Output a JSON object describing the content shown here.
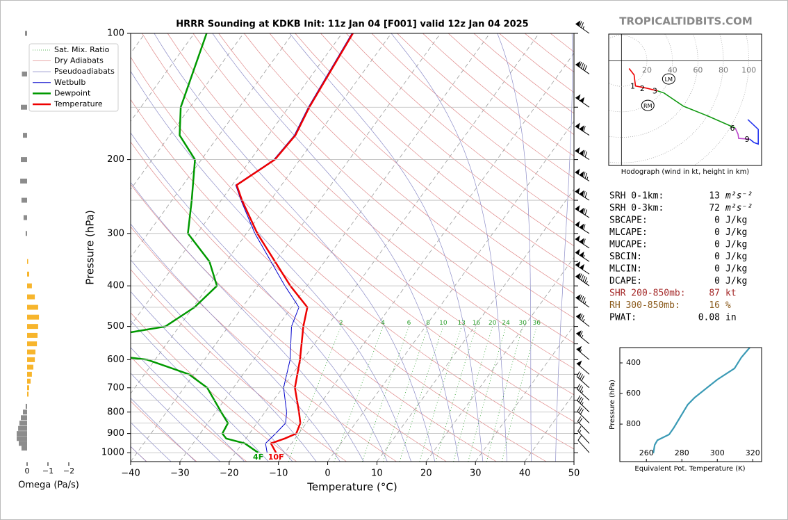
{
  "brand": "TROPICALTIDBITS.COM",
  "chart_data": [
    {
      "type": "skewt",
      "title": "HRRR Sounding at KDKB Init: 11z Jan 04 [F001] valid 12z Jan 04 2025",
      "x_label": "Temperature (°C)",
      "y_label": "Pressure (hPa)",
      "xlim": [
        -40,
        50
      ],
      "xticks": [
        {
          "value": -40,
          "label": "−40"
        },
        {
          "value": -30,
          "label": "−30"
        },
        {
          "value": -20,
          "label": "−20"
        },
        {
          "value": -10,
          "label": "−10"
        },
        0,
        10,
        20,
        30,
        40,
        50
      ],
      "ylim": [
        1050,
        100
      ],
      "log_y": true,
      "yticks": [
        100,
        200,
        300,
        400,
        500,
        600,
        700,
        800,
        900,
        1000
      ],
      "y_minor": [
        150,
        250,
        350,
        450,
        550,
        650,
        750,
        850,
        950
      ],
      "legend_position": "upper left",
      "reference_lines": [
        {
          "name": "Sat. Mix. Ratio",
          "color": "#2ca02c",
          "labels": [
            2,
            4,
            6,
            8,
            10,
            13,
            16,
            20,
            24,
            30,
            36
          ]
        },
        {
          "name": "Dry Adiabats",
          "color": "#e08a8a"
        },
        {
          "name": "Pseudoadiabats",
          "color": "#8c8cc8"
        }
      ],
      "series": [
        {
          "name": "Wetbulb",
          "color": "#0000cc",
          "pressure": [
            1000,
            950,
            900,
            850,
            800,
            700,
            600,
            500,
            450,
            400,
            300,
            250,
            230,
            200,
            175,
            150,
            100
          ],
          "values": [
            -13.6,
            -15.3,
            -14.7,
            -14.2,
            -15.6,
            -19.8,
            -22.6,
            -27.2,
            -28.5,
            -34.5,
            -48.3,
            -56,
            -59.3,
            -55.3,
            -54.7,
            -56,
            -58
          ]
        },
        {
          "name": "Dewpoint",
          "color": "#009900",
          "surface_label": "4F",
          "pressure": [
            1000,
            950,
            925,
            900,
            850,
            800,
            700,
            650,
            600,
            560,
            516,
            500,
            450,
            400,
            350,
            300,
            250,
            200,
            175,
            150,
            100
          ],
          "values": [
            -15.4,
            -19.5,
            -24,
            -25.5,
            -25.9,
            -28.9,
            -35.3,
            -41,
            -51.6,
            -75,
            -58.9,
            -52.8,
            -49.7,
            -48.3,
            -53.4,
            -61.9,
            -66,
            -71.3,
            -78,
            -81.9,
            -87.5
          ]
        },
        {
          "name": "Temperature",
          "color": "#ee0000",
          "surface_label": "10F",
          "pressure": [
            1000,
            950,
            925,
            900,
            850,
            800,
            700,
            600,
            500,
            450,
            400,
            300,
            250,
            230,
            200,
            175,
            150,
            100
          ],
          "values": [
            -11.8,
            -14.2,
            -12.1,
            -10.5,
            -11.2,
            -13.1,
            -17.5,
            -20.6,
            -24.8,
            -26.8,
            -33.4,
            -47.8,
            -55.8,
            -59.1,
            -55.1,
            -54.5,
            -55.8,
            -57.8
          ]
        }
      ],
      "winds": {
        "pressure": [
          100,
          125,
          150,
          175,
          200,
          225,
          250,
          275,
          300,
          325,
          350,
          375,
          400,
          450,
          500,
          550,
          600,
          650,
          700,
          750,
          800,
          850,
          900,
          950,
          1000
        ],
        "speed": [
          75,
          90,
          100,
          110,
          120,
          125,
          122,
          118,
          112,
          108,
          104,
          100,
          95,
          85,
          75,
          65,
          55,
          48,
          42,
          37,
          33,
          29,
          22,
          15,
          8
        ],
        "direction": [
          305,
          305,
          305,
          303,
          302,
          302,
          302,
          302,
          302,
          303,
          303,
          304,
          305,
          306,
          308,
          309,
          310,
          311,
          312,
          313,
          314,
          315,
          316,
          317,
          318
        ]
      }
    },
    {
      "type": "omega",
      "x_label": "Omega (Pa/s)",
      "xlim": [
        0.7,
        -2.5
      ],
      "xticks": [
        0,
        {
          "value": -1,
          "label": "−1"
        },
        {
          "value": -2,
          "label": "−2"
        }
      ],
      "positive_color": "#8c8c8c",
      "negative_color": "#f7b52c",
      "pressure": [
        100,
        125,
        150,
        175,
        200,
        225,
        250,
        275,
        300,
        350,
        375,
        400,
        425,
        450,
        475,
        500,
        525,
        550,
        575,
        600,
        625,
        650,
        675,
        700,
        725,
        775,
        800,
        825,
        850,
        875,
        900,
        925,
        950,
        975
      ],
      "values": [
        0.1,
        0.25,
        0.3,
        0.2,
        0.3,
        0.33,
        0.27,
        0.17,
        0.07,
        -0.05,
        -0.1,
        -0.23,
        -0.37,
        -0.53,
        -0.57,
        -0.53,
        -0.5,
        -0.47,
        -0.4,
        -0.37,
        -0.3,
        -0.23,
        -0.17,
        -0.1,
        -0.07,
        0.07,
        0.2,
        0.3,
        0.37,
        0.43,
        0.5,
        0.5,
        0.4,
        0.27
      ]
    },
    {
      "type": "hodograph",
      "title": "Hodograph (wind in kt, height in km)",
      "xlim": [
        -10,
        110
      ],
      "ylim": [
        -82,
        21
      ],
      "rings": [
        20,
        40,
        60,
        80,
        100
      ],
      "segments": [
        {
          "color": "#ee0000",
          "u": [
            6,
            9.9,
            11,
            19.7,
            28.4
          ],
          "v": [
            -6,
            -11,
            -19.7,
            -21.4,
            -23.5
          ]
        },
        {
          "color": "#119911",
          "u": [
            28.4,
            33.4,
            48.8,
            68,
            89.3
          ],
          "v": [
            -23.5,
            -25.2,
            -35.6,
            -43.3,
            -52.6
          ]
        },
        {
          "color": "#bb44cc",
          "u": [
            89.3,
            91.5,
            92,
            100.8
          ],
          "v": [
            -52.6,
            -57.5,
            -60.8,
            -61.4
          ]
        },
        {
          "color": "#2233ee",
          "u": [
            100.8,
            104,
            107.4,
            107.4,
            99.2
          ],
          "v": [
            -61.4,
            -64,
            -65.2,
            -53.7,
            -46
          ]
        }
      ],
      "height_labels": {
        "km": [
          1,
          2,
          3,
          6,
          9
        ],
        "u": [
          11,
          18.6,
          28.4,
          89.3,
          100.8
        ],
        "v": [
          -19.7,
          -21.4,
          -23.5,
          -52.6,
          -61.4
        ]
      },
      "storm_motion": [
        {
          "name": "LM",
          "u": 37.1,
          "v": -14.2
        },
        {
          "name": "RM",
          "u": 20.7,
          "v": -34.9
        }
      ]
    },
    {
      "type": "line",
      "x_label": "Equivalent Pot. Temperature (K)",
      "y_label": "Pressure (hPa)",
      "color": "#3a9ab5",
      "xlim": [
        245,
        325
      ],
      "xticks": [
        260,
        280,
        300,
        320
      ],
      "ylim": [
        1045,
        300
      ],
      "yticks": [
        400,
        600,
        800
      ],
      "x": [
        263.9,
        264.7,
        266.2,
        272.8,
        275.5,
        283.3,
        287.2,
        295,
        300,
        309.7,
        313.6,
        318.3
      ],
      "values": [
        991,
        936,
        905,
        868,
        823,
        673,
        627,
        555,
        509,
        436,
        364,
        300
      ]
    }
  ],
  "stats": [
    {
      "label": "SRH 0-1km:",
      "value": 13,
      "unit": "m²s⁻²"
    },
    {
      "label": "SRH 0-3km:",
      "value": 72,
      "unit": "m²s⁻²"
    },
    {
      "label": "SBCAPE:",
      "value": 0,
      "unit": "J/kg"
    },
    {
      "label": "MLCAPE:",
      "value": 0,
      "unit": "J/kg"
    },
    {
      "label": "MUCAPE:",
      "value": 0,
      "unit": "J/kg"
    },
    {
      "label": "SBCIN:",
      "value": 0,
      "unit": "J/kg"
    },
    {
      "label": "MLCIN:",
      "value": 0,
      "unit": "J/kg"
    },
    {
      "label": "DCAPE:",
      "value": 0,
      "unit": "J/kg"
    },
    {
      "label": "SHR 200-850mb:",
      "value": 87,
      "unit": "kt",
      "color": "#a52a2a"
    },
    {
      "label": "RH 300-850mb:",
      "value": 16,
      "unit": "%",
      "color": "#8b5a1b"
    },
    {
      "label": "PWAT:",
      "value": 0.08,
      "unit": "in"
    }
  ]
}
